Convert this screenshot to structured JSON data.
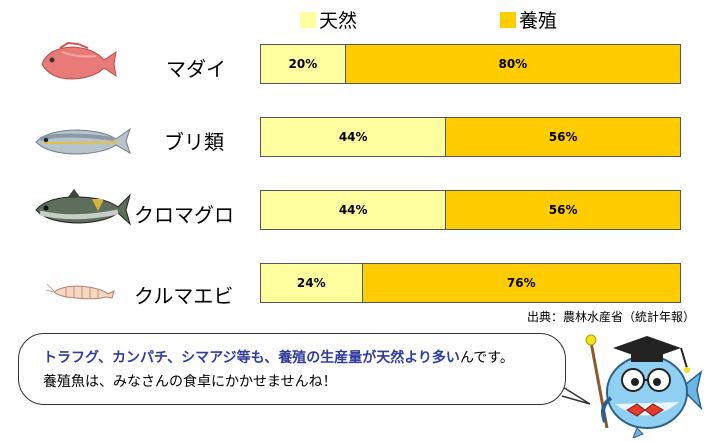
{
  "legend": {
    "wild_label": "天然",
    "farm_label": "養殖",
    "wild_color": "#ffffa0",
    "farm_color": "#ffcc00"
  },
  "chart_data": {
    "type": "bar",
    "orientation": "horizontal",
    "stacked": true,
    "percent": true,
    "categories": [
      "マダイ",
      "ブリ類",
      "クロマグロ",
      "クルマエビ"
    ],
    "series": [
      {
        "name": "天然",
        "color": "#ffffa0",
        "values": [
          20,
          44,
          44,
          24
        ]
      },
      {
        "name": "養殖",
        "color": "#ffcc00",
        "values": [
          80,
          56,
          56,
          76
        ]
      }
    ],
    "xlim": [
      0,
      100
    ],
    "grid": false,
    "legend_position": "top"
  },
  "rows": [
    {
      "name": "マダイ",
      "icon": "red-sea-bream-icon",
      "wild_label": "20%",
      "farm_label": "80%"
    },
    {
      "name": "ブリ類",
      "icon": "yellowtail-icon",
      "wild_label": "44%",
      "farm_label": "56%"
    },
    {
      "name": "クロマグロ",
      "icon": "bluefin-tuna-icon",
      "wild_label": "44%",
      "farm_label": "56%"
    },
    {
      "name": "クルマエビ",
      "icon": "kuruma-prawn-icon",
      "wild_label": "24%",
      "farm_label": "76%"
    }
  ],
  "source": "出典：農林水産省（統計年報）",
  "bubble": {
    "line1_highlight_a": "トラフグ、カンパチ、シマアジ等も、",
    "line1_highlight_b": "養殖の生産量が天然より多い",
    "line1_tail": "んです。",
    "line2": "養殖魚は、みなさんの食卓にかかせませんね！"
  },
  "mascot": {
    "icon": "professor-fish-mascot-icon"
  }
}
